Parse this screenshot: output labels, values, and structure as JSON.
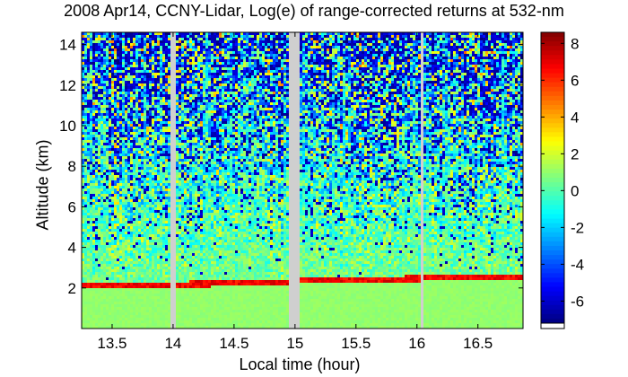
{
  "chart_data": {
    "type": "heatmap",
    "title": "2008 Apr14, CCNY-Lidar, Log(e) of range-corrected returns at 532-nm",
    "xlabel": "Local time (hour)",
    "ylabel": "Altitude (km)",
    "xlim": [
      13.25,
      16.87
    ],
    "ylim": [
      0,
      14.6
    ],
    "xticks": [
      {
        "value": 13.5,
        "label": "13.5"
      },
      {
        "value": 14.0,
        "label": "14"
      },
      {
        "value": 14.5,
        "label": "14.5"
      },
      {
        "value": 15.0,
        "label": "15"
      },
      {
        "value": 15.5,
        "label": "15.5"
      },
      {
        "value": 16.0,
        "label": "16"
      },
      {
        "value": 16.5,
        "label": "16.5"
      }
    ],
    "yticks": [
      {
        "value": 2,
        "label": "2"
      },
      {
        "value": 4,
        "label": "4"
      },
      {
        "value": 6,
        "label": "6"
      },
      {
        "value": 8,
        "label": "8"
      },
      {
        "value": 10,
        "label": "10"
      },
      {
        "value": 12,
        "label": "12"
      },
      {
        "value": 14,
        "label": "14"
      }
    ],
    "colorbar": {
      "range": [
        -7.2,
        8.6
      ],
      "colormap": "jet",
      "ticks": [
        {
          "value": 8,
          "label": "8"
        },
        {
          "value": 6,
          "label": "6"
        },
        {
          "value": 4,
          "label": "4"
        },
        {
          "value": 2,
          "label": "2"
        },
        {
          "value": 0,
          "label": "0"
        },
        {
          "value": -2,
          "label": "-2"
        },
        {
          "value": -4,
          "label": "-4"
        },
        {
          "value": -6,
          "label": "-6"
        }
      ]
    },
    "data_gaps_hours": [
      [
        13.98,
        14.03
      ],
      [
        14.95,
        15.04
      ],
      [
        16.03,
        16.05
      ]
    ],
    "boundary_layer_top_km": [
      {
        "t": 13.25,
        "h": 2.1
      },
      {
        "t": 13.6,
        "h": 2.1
      },
      {
        "t": 13.98,
        "h": 2.15
      },
      {
        "t": 14.03,
        "h": 2.15
      },
      {
        "t": 14.5,
        "h": 2.25
      },
      {
        "t": 14.95,
        "h": 2.3
      },
      {
        "t": 15.04,
        "h": 2.35
      },
      {
        "t": 15.5,
        "h": 2.4
      },
      {
        "t": 16.03,
        "h": 2.45
      },
      {
        "t": 16.05,
        "h": 2.5
      },
      {
        "t": 16.87,
        "h": 2.5
      }
    ],
    "value_levels": {
      "boundary_layer": 1.0,
      "cloud_layer_top": 7.5,
      "lower_troposphere": 0.6,
      "upper_troposphere_noise_min": -7.0
    }
  }
}
